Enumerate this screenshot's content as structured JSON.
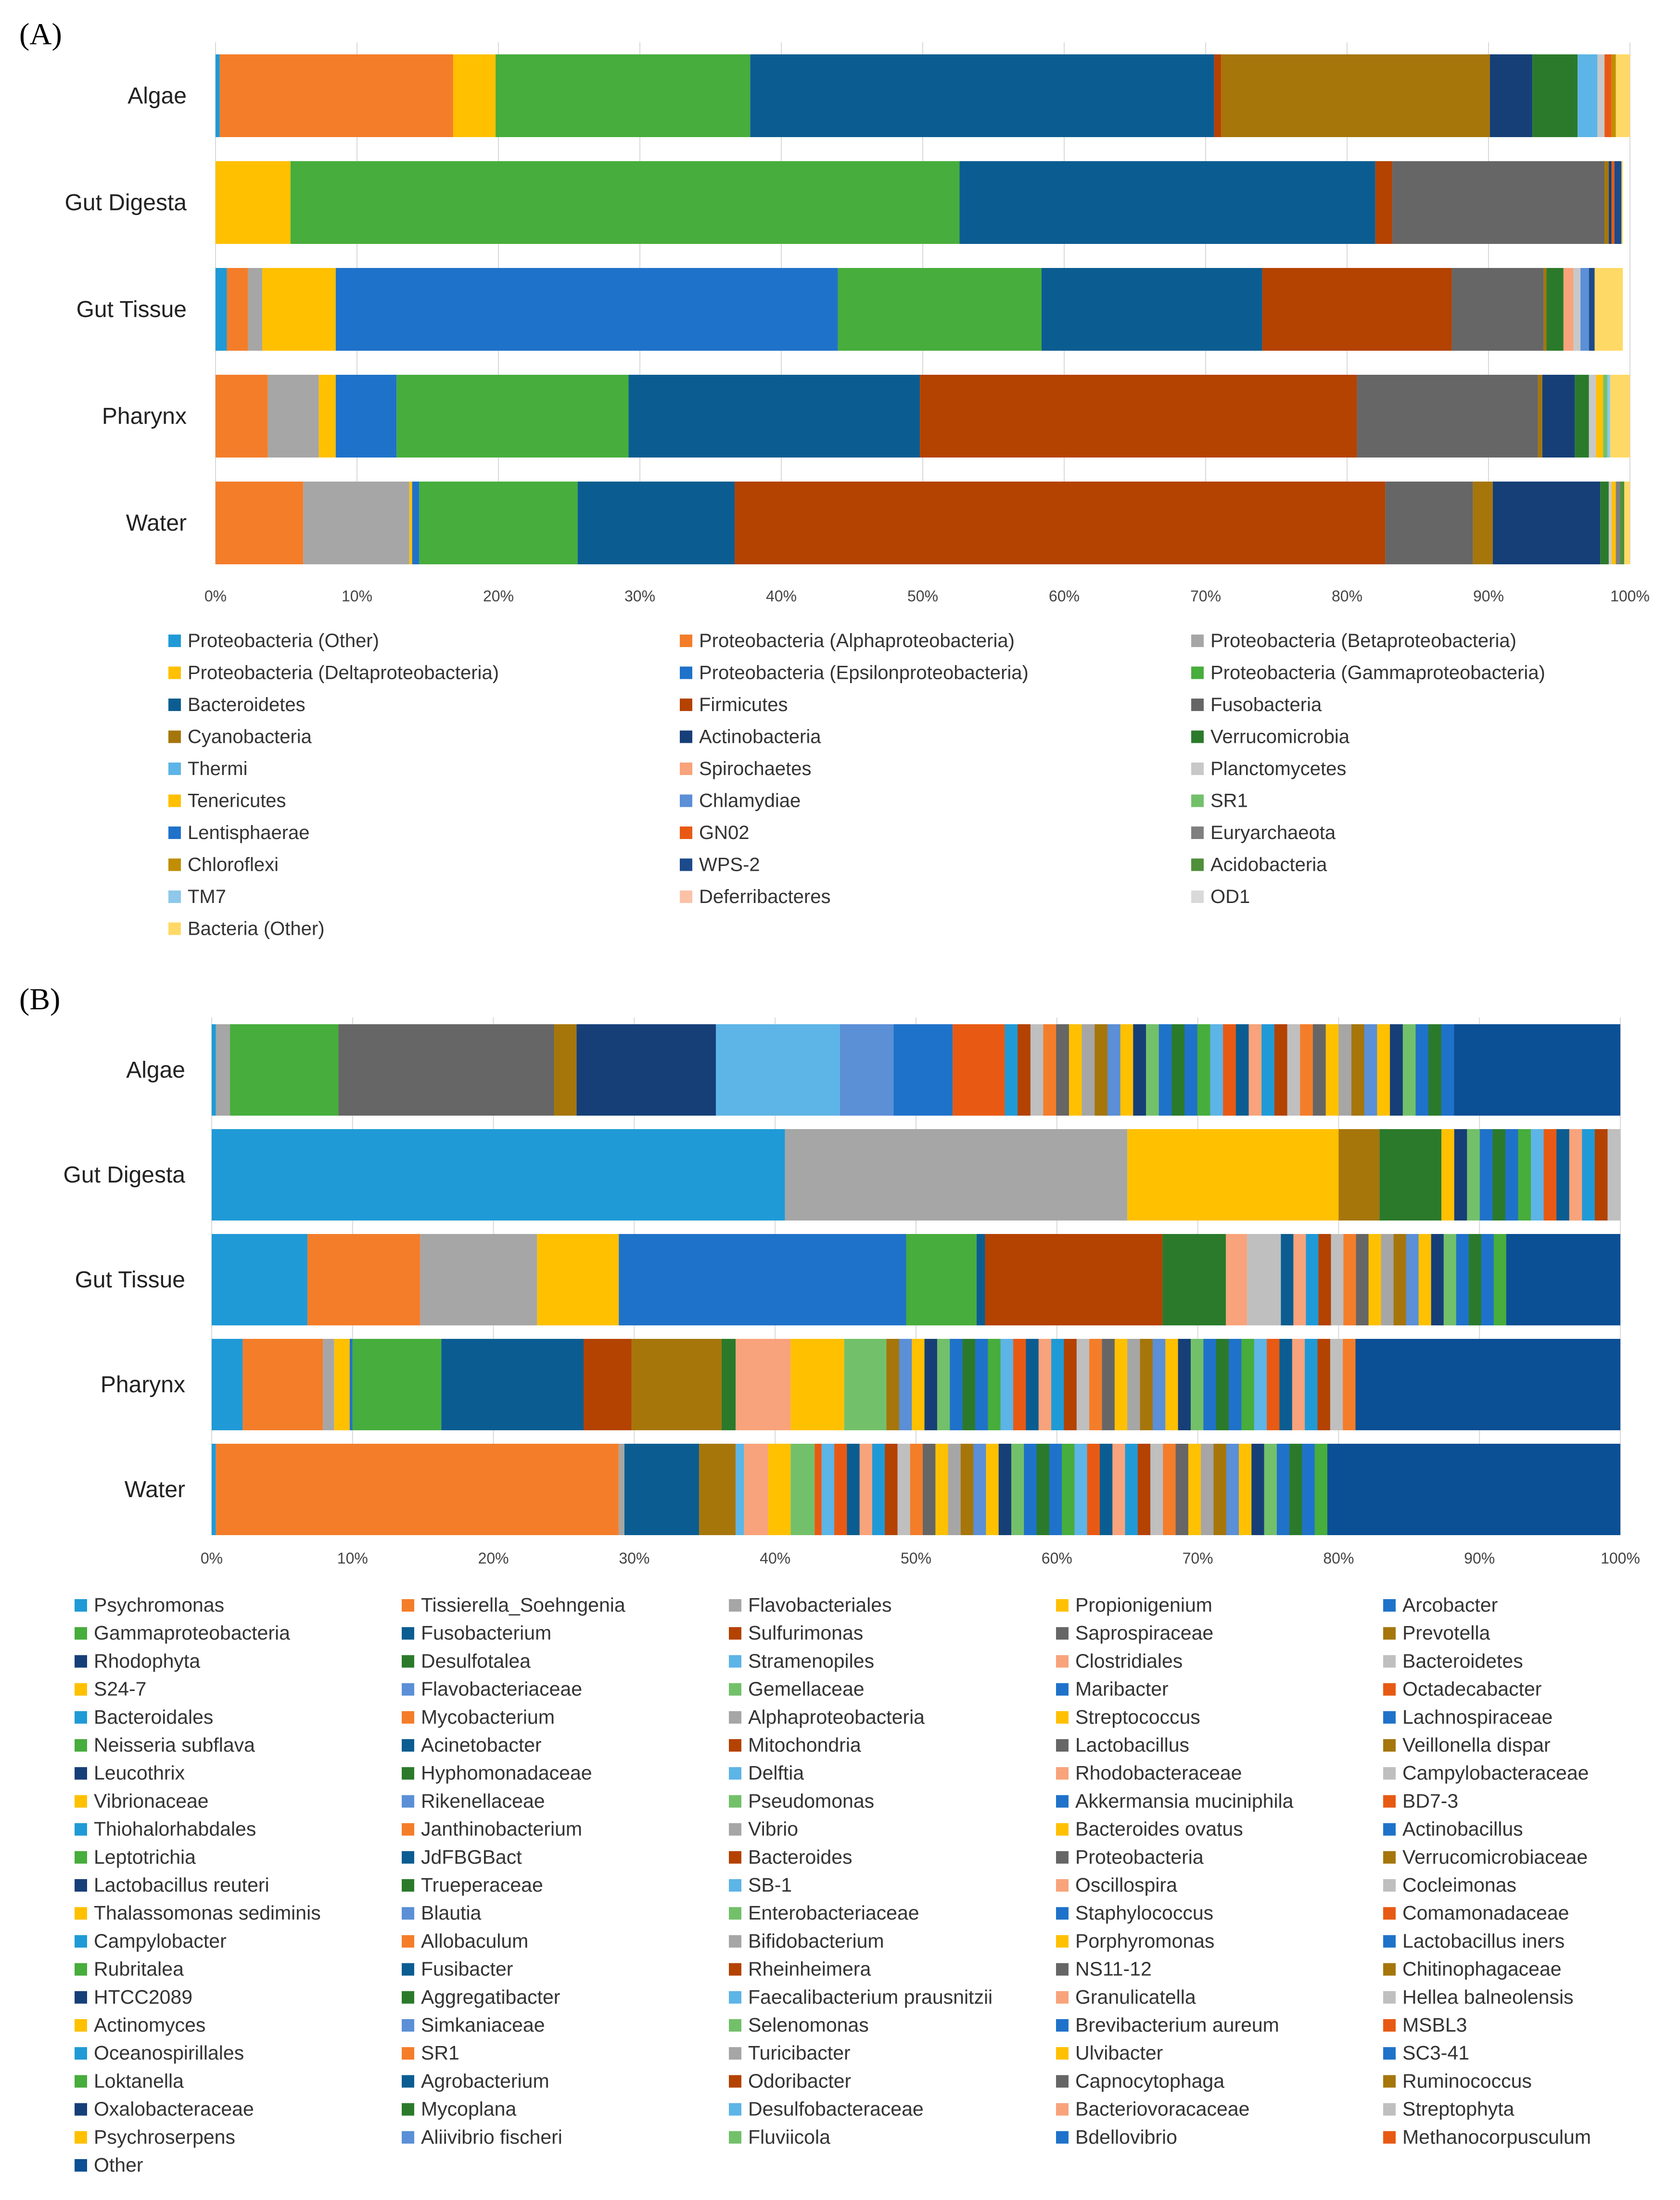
{
  "chart_data": [
    {
      "panel": "(A)",
      "type": "bar",
      "orientation": "horizontal",
      "stacked": "100%",
      "categories": [
        "Algae",
        "Gut Digesta",
        "Gut Tissue",
        "Pharynx",
        "Water"
      ],
      "xlim": [
        0,
        100
      ],
      "xticks": [
        "0%",
        "10%",
        "20%",
        "30%",
        "40%",
        "50%",
        "60%",
        "70%",
        "80%",
        "90%",
        "100%"
      ],
      "legend_position": "bottom",
      "series": [
        {
          "name": "Proteobacteria (Other)",
          "color": "#1f9ad6",
          "values": [
            0.3,
            0,
            0.8,
            0,
            0
          ]
        },
        {
          "name": "Proteobacteria (Alphaproteobacteria)",
          "color": "#f47d2a",
          "values": [
            16.5,
            0,
            1.5,
            3.7,
            6.2
          ]
        },
        {
          "name": "Proteobacteria (Betaproteobacteria)",
          "color": "#a6a6a6",
          "values": [
            0,
            0,
            1.0,
            3.6,
            7.5
          ]
        },
        {
          "name": "Proteobacteria (Deltaproteobacteria)",
          "color": "#ffc000",
          "values": [
            3.0,
            5.3,
            5.2,
            1.2,
            0.2
          ]
        },
        {
          "name": "Proteobacteria (Epsilonproteobacteria)",
          "color": "#1f72c9",
          "values": [
            0,
            0,
            35.5,
            4.3,
            0.5
          ]
        },
        {
          "name": "Proteobacteria (Gammaproteobacteria)",
          "color": "#47ad3c",
          "values": [
            18.0,
            47.3,
            14.4,
            16.4,
            11.2
          ]
        },
        {
          "name": "Bacteroidetes",
          "color": "#0b5d91",
          "values": [
            32.8,
            29.4,
            15.6,
            20.6,
            11.1
          ]
        },
        {
          "name": "Firmicutes",
          "color": "#b44200",
          "values": [
            0.5,
            1.2,
            13.4,
            30.9,
            46.0
          ]
        },
        {
          "name": "Fusobacteria",
          "color": "#666666",
          "values": [
            0,
            15.0,
            6.5,
            12.8,
            6.2
          ]
        },
        {
          "name": "Cyanobacteria",
          "color": "#a6760b",
          "values": [
            19.0,
            0.3,
            0.2,
            0.3,
            1.4
          ]
        },
        {
          "name": "Actinobacteria",
          "color": "#163f78",
          "values": [
            3.0,
            0.2,
            0,
            2.3,
            7.6
          ]
        },
        {
          "name": "Verrucomicrobia",
          "color": "#2b7a2b",
          "values": [
            3.2,
            0,
            1.2,
            1.0,
            0.6
          ]
        },
        {
          "name": "Thermi",
          "color": "#5db4e6",
          "values": [
            1.4,
            0,
            0,
            0,
            0
          ]
        },
        {
          "name": "Spirochaetes",
          "color": "#f8a37b",
          "values": [
            0,
            0,
            0.7,
            0,
            0
          ]
        },
        {
          "name": "Planctomycetes",
          "color": "#c8c8c8",
          "values": [
            0.5,
            0,
            0.5,
            0.5,
            0.2
          ]
        },
        {
          "name": "Tenericutes",
          "color": "#ffc000",
          "values": [
            0,
            0,
            0,
            0.5,
            0.3
          ]
        },
        {
          "name": "Chlamydiae",
          "color": "#5b8fd6",
          "values": [
            0,
            0,
            0.6,
            0,
            0
          ]
        },
        {
          "name": "SR1",
          "color": "#73c06a",
          "values": [
            0,
            0,
            0,
            0.3,
            0
          ]
        },
        {
          "name": "Lentisphaerae",
          "color": "#1f72c9",
          "values": [
            0,
            0,
            0,
            0,
            0
          ]
        },
        {
          "name": "GN02",
          "color": "#e85a13",
          "values": [
            0.5,
            0.2,
            0,
            0,
            0
          ]
        },
        {
          "name": "Euryarchaeota",
          "color": "#7f7f7f",
          "values": [
            0,
            0,
            0,
            0,
            0.3
          ]
        },
        {
          "name": "Chloroflexi",
          "color": "#c08e00",
          "values": [
            0.3,
            0,
            0,
            0,
            0
          ]
        },
        {
          "name": "WPS-2",
          "color": "#1c4a8a",
          "values": [
            0,
            0.5,
            0.4,
            0,
            0
          ]
        },
        {
          "name": "Acidobacteria",
          "color": "#4f8f3a",
          "values": [
            0,
            0,
            0,
            0,
            0.3
          ]
        },
        {
          "name": "TM7",
          "color": "#8ec8ea",
          "values": [
            0,
            0,
            0,
            0.2,
            0
          ]
        },
        {
          "name": "Deferribacteres",
          "color": "#fbc2a8",
          "values": [
            0,
            0,
            0,
            0,
            0
          ]
        },
        {
          "name": "OD1",
          "color": "#d9d9d9",
          "values": [
            0,
            0,
            0,
            0,
            0
          ]
        },
        {
          "name": "Bacteria (Other)",
          "color": "#ffd966",
          "values": [
            1.0,
            0.1,
            2.0,
            1.4,
            0.4
          ]
        }
      ]
    },
    {
      "panel": "(B)",
      "type": "bar",
      "orientation": "horizontal",
      "stacked": "100%",
      "categories": [
        "Algae",
        "Gut Digesta",
        "Gut Tissue",
        "Pharynx",
        "Water"
      ],
      "xlim": [
        0,
        100
      ],
      "xticks": [
        "0%",
        "10%",
        "20%",
        "30%",
        "40%",
        "50%",
        "60%",
        "70%",
        "80%",
        "90%",
        "100%"
      ],
      "legend_position": "bottom",
      "series": [
        {
          "name": "Psychromonas",
          "color": "#1f9ad6",
          "values": [
            0.3,
            40.7,
            6.8,
            2.2,
            0.3
          ]
        },
        {
          "name": "Tissierella_Soehngenia",
          "color": "#f47d2a",
          "values": [
            0,
            0,
            8.0,
            5.7,
            28.6
          ]
        },
        {
          "name": "Flavobacteriales",
          "color": "#a6a6a6",
          "values": [
            1.0,
            24.3,
            8.3,
            0.8,
            0.4
          ]
        },
        {
          "name": "Propionigenium",
          "color": "#ffc000",
          "values": [
            0,
            15.0,
            5.8,
            1.1,
            0
          ]
        },
        {
          "name": "Arcobacter",
          "color": "#1f72c9",
          "values": [
            0,
            0,
            20.4,
            0.2,
            0
          ]
        },
        {
          "name": "Gammaproteobacteria",
          "color": "#47ad3c",
          "values": [
            7.7,
            0,
            5.0,
            6.3,
            0
          ]
        },
        {
          "name": "Fusobacterium",
          "color": "#0b5d91",
          "values": [
            0,
            0,
            0.6,
            10.1,
            5.3
          ]
        },
        {
          "name": "Sulfurimonas",
          "color": "#b44200",
          "values": [
            0,
            0,
            12.6,
            3.4,
            0
          ]
        },
        {
          "name": "Saprospiraceae",
          "color": "#666666",
          "values": [
            15.3,
            0,
            0,
            0,
            0
          ]
        },
        {
          "name": "Prevotella",
          "color": "#a6760b",
          "values": [
            1.6,
            2.9,
            0,
            6.4,
            2.6
          ]
        },
        {
          "name": "Rhodophyta",
          "color": "#163f78",
          "values": [
            9.9,
            0,
            0,
            0,
            0
          ]
        },
        {
          "name": "Desulfotalea",
          "color": "#2b7a2b",
          "values": [
            0,
            4.4,
            4.5,
            1.0,
            0
          ]
        },
        {
          "name": "Stramenopiles",
          "color": "#5db4e6",
          "values": [
            8.8,
            0,
            0,
            0,
            0.6
          ]
        },
        {
          "name": "Clostridiales",
          "color": "#f8a37b",
          "values": [
            0,
            0,
            1.5,
            3.9,
            1.7
          ]
        },
        {
          "name": "Bacteroidetes",
          "color": "#bfbfbf",
          "values": [
            0,
            0,
            2.4,
            0,
            0
          ]
        },
        {
          "name": "S24-7",
          "color": "#ffc000",
          "values": [
            0,
            0,
            0,
            3.8,
            1.6
          ]
        },
        {
          "name": "Flavobacteriaceae",
          "color": "#5b8fd6",
          "values": [
            3.8,
            0,
            0,
            0,
            0
          ]
        },
        {
          "name": "Gemellaceae",
          "color": "#73c06a",
          "values": [
            0,
            0,
            0,
            3.0,
            1.7
          ]
        },
        {
          "name": "Maribacter",
          "color": "#1f72c9",
          "values": [
            4.2,
            0,
            0,
            0,
            0
          ]
        },
        {
          "name": "Octadecabacter",
          "color": "#e85a13",
          "values": [
            3.7,
            0,
            0,
            0,
            0.5
          ]
        },
        {
          "name": "Other",
          "color": "#0b4f94",
          "values": [
            11.8,
            0,
            8.1,
            18.8,
            20.8
          ]
        }
      ],
      "note": "Panel B legend lists 101 genera; remaining small segments are drawn as thin stripes."
    }
  ],
  "legend_a": [
    "Proteobacteria (Other)",
    "Proteobacteria (Alphaproteobacteria)",
    "Proteobacteria (Betaproteobacteria)",
    "Proteobacteria (Deltaproteobacteria)",
    "Proteobacteria (Epsilonproteobacteria)",
    "Proteobacteria (Gammaproteobacteria)",
    "Bacteroidetes",
    "Firmicutes",
    "Fusobacteria",
    "Cyanobacteria",
    "Actinobacteria",
    "Verrucomicrobia",
    "Thermi",
    "Spirochaetes",
    "Planctomycetes",
    "Tenericutes",
    "Chlamydiae",
    "SR1",
    "Lentisphaerae",
    "GN02",
    "Euryarchaeota",
    "Chloroflexi",
    "WPS-2",
    "Acidobacteria",
    "TM7",
    "Deferribacteres",
    "OD1",
    "Bacteria (Other)"
  ],
  "legend_b": [
    "Psychromonas",
    "Tissierella_Soehngenia",
    "Flavobacteriales",
    "Propionigenium",
    "Arcobacter",
    "Gammaproteobacteria",
    "Fusobacterium",
    "Sulfurimonas",
    "Saprospiraceae",
    "Prevotella",
    "Rhodophyta",
    "Desulfotalea",
    "Stramenopiles",
    "Clostridiales",
    "Bacteroidetes",
    "S24-7",
    "Flavobacteriaceae",
    "Gemellaceae",
    "Maribacter",
    "Octadecabacter",
    "Bacteroidales",
    "Mycobacterium",
    "Alphaproteobacteria",
    "Streptococcus",
    "Lachnospiraceae",
    "Neisseria subflava",
    "Acinetobacter",
    "Mitochondria",
    "Lactobacillus",
    "Veillonella dispar",
    "Leucothrix",
    "Hyphomonadaceae",
    "Delftia",
    "Rhodobacteraceae",
    "Campylobacteraceae",
    "Vibrionaceae",
    "Rikenellaceae",
    "Pseudomonas",
    "Akkermansia muciniphila",
    "BD7-3",
    "Thiohalorhabdales",
    "Janthinobacterium",
    "Vibrio",
    "Bacteroides ovatus",
    "Actinobacillus",
    "Leptotrichia",
    "JdFBGBact",
    "Bacteroides",
    "Proteobacteria",
    "Verrucomicrobiaceae",
    "Lactobacillus reuteri",
    "Trueperaceae",
    "SB-1",
    "Oscillospira",
    "Cocleimonas",
    "Thalassomonas sediminis",
    "Blautia",
    "Enterobacteriaceae",
    "Staphylococcus",
    "Comamonadaceae",
    "Campylobacter",
    "Allobaculum",
    "Bifidobacterium",
    "Porphyromonas",
    "Lactobacillus iners",
    "Rubritalea",
    "Fusibacter",
    "Rheinheimera",
    "NS11-12",
    "Chitinophagaceae",
    "HTCC2089",
    "Aggregatibacter",
    "Faecalibacterium prausnitzii",
    "Granulicatella",
    "Hellea balneolensis",
    "Actinomyces",
    "Simkaniaceae",
    "Selenomonas",
    "Brevibacterium aureum",
    "MSBL3",
    "Oceanospirillales",
    "SR1",
    "Turicibacter",
    "Ulvibacter",
    "SC3-41",
    "Loktanella",
    "Agrobacterium",
    "Odoribacter",
    "Capnocytophaga",
    "Ruminococcus",
    "Oxalobacteraceae",
    "Mycoplana",
    "Desulfobacteraceae",
    "Bacteriovoracaceae",
    "Streptophyta",
    "Psychroserpens",
    "Aliivibrio fischeri",
    "Fluviicola",
    "Bdellovibrio",
    "Methanocorpusculum",
    "Other"
  ],
  "palette_b": [
    "#1f9ad6",
    "#f47d2a",
    "#a6a6a6",
    "#ffc000",
    "#1f72c9",
    "#47ad3c",
    "#0b5d91",
    "#b44200",
    "#666666",
    "#a6760b",
    "#163f78",
    "#2b7a2b",
    "#5db4e6",
    "#f8a37b",
    "#bfbfbf",
    "#ffc000",
    "#5b8fd6",
    "#73c06a",
    "#1f72c9",
    "#e85a13"
  ]
}
